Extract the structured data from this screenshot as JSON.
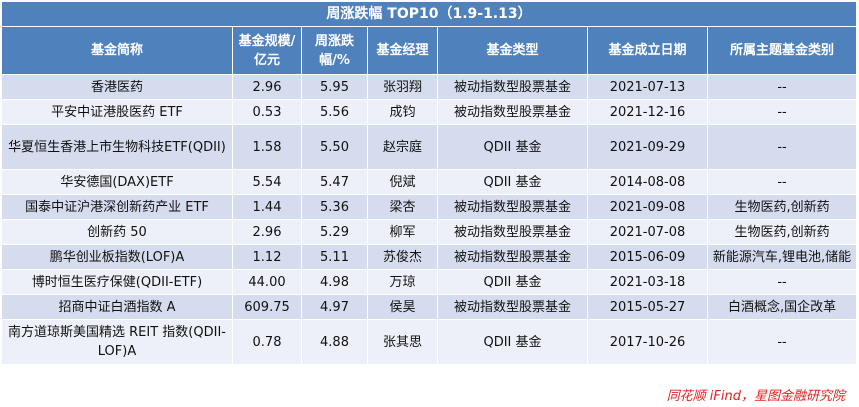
{
  "title": "周涨跌幅 TOP10（1.9-1.13）",
  "columns": [
    "基金简称",
    "基金规模/亿元",
    "周涨跌幅/%",
    "基金经理",
    "基金类型",
    "基金成立日期",
    "所属主题基金类别"
  ],
  "rows": [
    {
      "name": "香港医药",
      "scale": "2.96",
      "change": "5.95",
      "manager": "张羽翔",
      "type": "被动指数型股票基金",
      "date": "2021-07-13",
      "theme": "--"
    },
    {
      "name": "平安中证港股医药 ETF",
      "scale": "0.53",
      "change": "5.56",
      "manager": "成钧",
      "type": "被动指数型股票基金",
      "date": "2021-12-16",
      "theme": "--"
    },
    {
      "name": "华夏恒生香港上市生物科技ETF(QDII)",
      "scale": "1.58",
      "change": "5.50",
      "manager": "赵宗庭",
      "type": "QDII 基金",
      "date": "2021-09-29",
      "theme": "--"
    },
    {
      "name": "华安德国(DAX)ETF",
      "scale": "5.54",
      "change": "5.47",
      "manager": "倪斌",
      "type": "QDII 基金",
      "date": "2014-08-08",
      "theme": "--"
    },
    {
      "name": "国泰中证沪港深创新药产业 ETF",
      "scale": "1.44",
      "change": "5.36",
      "manager": "梁杏",
      "type": "被动指数型股票基金",
      "date": "2021-09-08",
      "theme": "生物医药,创新药"
    },
    {
      "name": "创新药 50",
      "scale": "2.96",
      "change": "5.29",
      "manager": "柳军",
      "type": "被动指数型股票基金",
      "date": "2021-07-08",
      "theme": "生物医药,创新药"
    },
    {
      "name": "鹏华创业板指数(LOF)A",
      "scale": "1.12",
      "change": "5.11",
      "manager": "苏俊杰",
      "type": "被动指数型股票基金",
      "date": "2015-06-09",
      "theme": "新能源汽车,锂电池,储能"
    },
    {
      "name": "博时恒生医疗保健(QDII-ETF)",
      "scale": "44.00",
      "change": "4.98",
      "manager": "万琼",
      "type": "QDII 基金",
      "date": "2021-03-18",
      "theme": "--"
    },
    {
      "name": "招商中证白酒指数 A",
      "scale": "609.75",
      "change": "4.97",
      "manager": "侯昊",
      "type": "被动指数型股票基金",
      "date": "2015-05-27",
      "theme": "白酒概念,国企改革"
    },
    {
      "name": "南方道琼斯美国精选 REIT 指数(QDII-LOF)A",
      "scale": "0.78",
      "change": "4.88",
      "manager": "张其思",
      "type": "QDII 基金",
      "date": "2017-10-26",
      "theme": "--"
    }
  ],
  "source": "同花顺 iFind，星图金融研究院"
}
